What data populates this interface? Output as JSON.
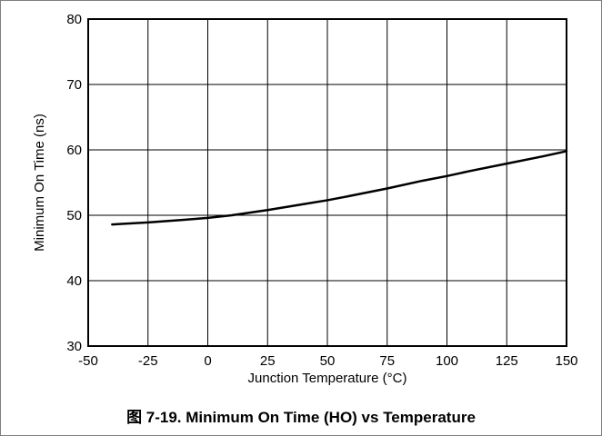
{
  "caption": "图 7-19. Minimum On Time (HO) vs Temperature",
  "chart_data": {
    "type": "line",
    "title": "",
    "xlabel": "Junction Temperature (°C)",
    "ylabel": "Minimum On Time (ns)",
    "xlim": [
      -50,
      150
    ],
    "ylim": [
      30,
      80
    ],
    "xticks": [
      -50,
      -25,
      0,
      25,
      50,
      75,
      100,
      125,
      150
    ],
    "yticks": [
      30,
      40,
      50,
      60,
      70,
      80
    ],
    "grid": true,
    "legend": "none",
    "series": [
      {
        "color": "#000000",
        "x": [
          -40,
          -25,
          -10,
          0,
          10,
          25,
          40,
          50,
          60,
          75,
          90,
          100,
          110,
          125,
          140,
          150
        ],
        "y": [
          48.6,
          48.9,
          49.3,
          49.6,
          50.0,
          50.8,
          51.7,
          52.3,
          53.0,
          54.1,
          55.3,
          56.0,
          56.8,
          57.9,
          59.0,
          59.8
        ]
      }
    ]
  }
}
